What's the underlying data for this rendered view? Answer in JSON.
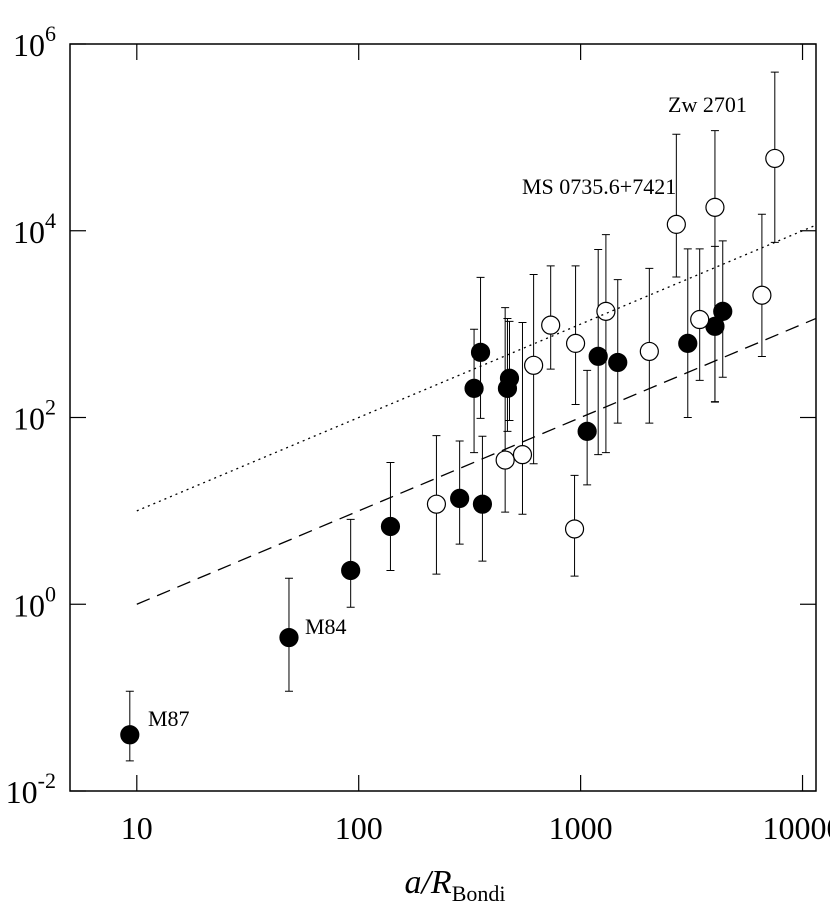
{
  "chart_data": {
    "type": "scatter",
    "x_label": {
      "text": "a/R",
      "subscript": "Bondi"
    },
    "xlog": true,
    "ylog": true,
    "xlim": [
      5,
      11500
    ],
    "ylim": [
      0.01,
      1000000
    ],
    "xticks": [
      10,
      100,
      1000,
      10000
    ],
    "yticks": [
      {
        "value": 0.01,
        "label": "10^-2"
      },
      {
        "value": 1,
        "label": "10^0"
      },
      {
        "value": 100,
        "label": "10^2"
      },
      {
        "value": 10000,
        "label": "10^4"
      },
      {
        "value": 1000000,
        "label": "10^6"
      }
    ],
    "series": [
      {
        "marker": "filled",
        "color": "#000000",
        "x": [
          9.3,
          48.5,
          92,
          139,
          285,
          361,
          331,
          354,
          468,
          478,
          1070,
          1200,
          1470,
          3040,
          4030,
          4370
        ],
        "values": [
          0.04,
          0.44,
          2.3,
          6.8,
          13.6,
          11.8,
          205,
          499,
          205,
          263,
          71,
          452,
          389,
          622,
          947,
          1370
        ],
        "y_low": [
          0.021,
          0.117,
          0.93,
          2.3,
          4.4,
          2.9,
          42,
          98,
          71,
          93,
          19,
          40,
          87,
          100,
          148,
          270
        ],
        "y_high": [
          0.117,
          1.9,
          8.1,
          33,
          56,
          63,
          880,
          3170,
          1150,
          1070,
          320,
          6300,
          3000,
          6400,
          6800,
          7800
        ]
      },
      {
        "marker": "open",
        "color": "#000000",
        "x": [
          224,
          457,
          547,
          614,
          733,
          949,
          939,
          1300,
          2040,
          2700,
          3440,
          4030,
          6560,
          7500
        ],
        "values": [
          11.8,
          35,
          40,
          362,
          975,
          622,
          6.4,
          1370,
          510,
          11700,
          1120,
          17800,
          2040,
          59500
        ],
        "y_low": [
          2.1,
          9.7,
          9.2,
          32,
          330,
          138,
          2.0,
          42,
          87,
          3200,
          250,
          146,
          450,
          7500
        ],
        "y_high": [
          64,
          1500,
          1040,
          3400,
          4200,
          4200,
          24,
          9100,
          3950,
          108000,
          6400,
          118000,
          15000,
          500000
        ]
      },
      {
        "line_style": "dotted",
        "color": "#000000",
        "x": [
          10,
          11500
        ],
        "values": [
          10,
          11500
        ]
      },
      {
        "line_style": "dashed",
        "color": "#000000",
        "x": [
          10,
          11500
        ],
        "values": [
          1,
          1150
        ]
      }
    ],
    "annotations": [
      "M87",
      "M84",
      "MS 0735.6+7421",
      "Zw 2701"
    ]
  }
}
